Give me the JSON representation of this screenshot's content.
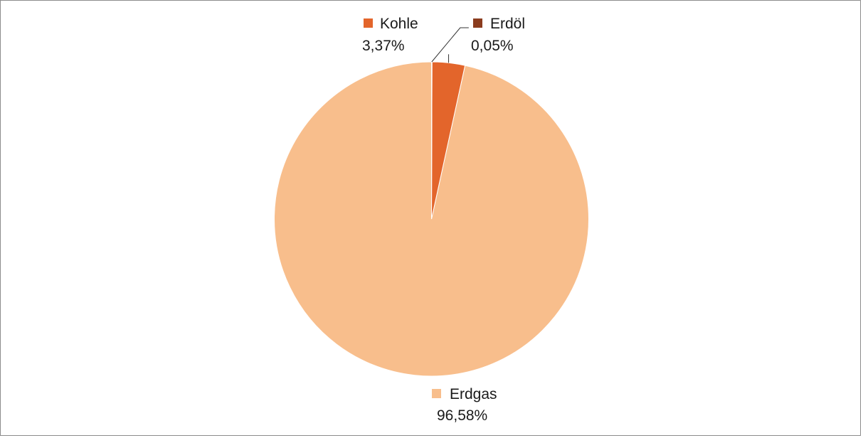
{
  "chart_data": {
    "type": "pie",
    "slices": [
      {
        "name": "Erdgas",
        "value": 96.58,
        "label": "96,58%",
        "color": "#F8BE8C"
      },
      {
        "name": "Kohle",
        "value": 3.37,
        "label": "3,37%",
        "color": "#E3652B"
      },
      {
        "name": "Erdöl",
        "value": 0.05,
        "label": "0,05%",
        "color": "#8B3C1E"
      }
    ],
    "start_angle_deg": 0,
    "direction": "counterclockwise",
    "legend": "inline-labels",
    "border": true
  }
}
